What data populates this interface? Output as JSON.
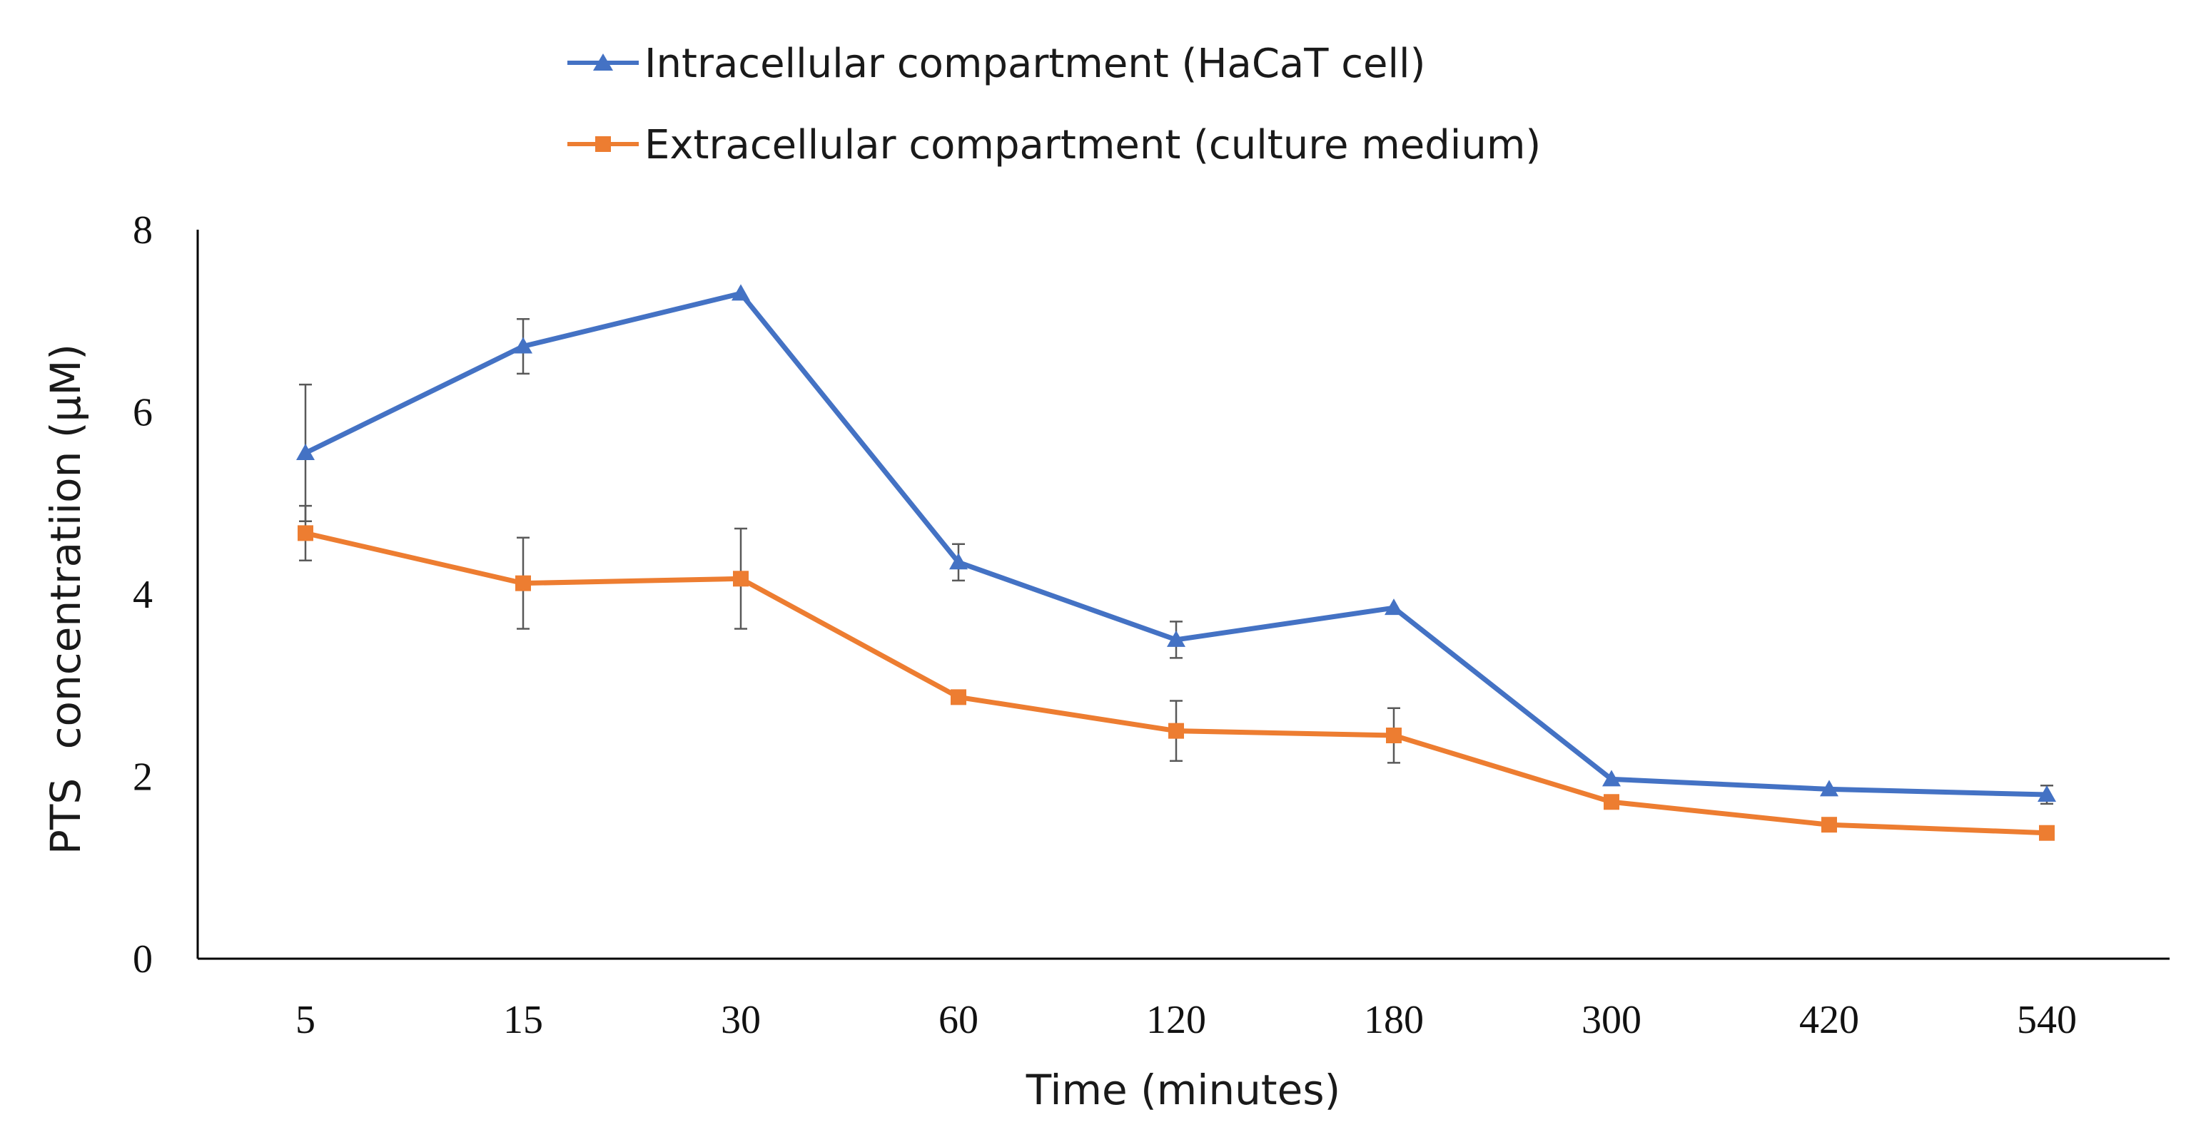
{
  "chart_data": {
    "type": "line",
    "title": "",
    "xlabel": "Time (minutes)",
    "ylabel_parts": [
      "PTS",
      "concentratiion (μM)"
    ],
    "categories": [
      "5",
      "15",
      "30",
      "60",
      "120",
      "180",
      "300",
      "420",
      "540"
    ],
    "ylim": [
      0,
      8
    ],
    "y_ticks": [
      0,
      2,
      4,
      6,
      8
    ],
    "y_tick_labels": [
      "0",
      "2",
      "4",
      "6",
      "8"
    ],
    "grid": false,
    "legend_position": "top-center",
    "series": [
      {
        "name": "Intracellular compartment (HaCaT cell)",
        "color": "#4472C4",
        "marker": "triangle",
        "values": [
          5.55,
          6.72,
          7.3,
          4.35,
          3.5,
          3.85,
          1.97,
          1.86,
          1.8
        ],
        "error": [
          0.75,
          0.3,
          0.0,
          0.2,
          0.2,
          0.0,
          0.0,
          0.0,
          0.1
        ]
      },
      {
        "name": "Extracellular compartment (culture medium)",
        "color": "#ED7D31",
        "marker": "square",
        "values": [
          4.67,
          4.12,
          4.17,
          2.87,
          2.5,
          2.45,
          1.72,
          1.47,
          1.38
        ],
        "error": [
          0.3,
          0.5,
          0.55,
          0.0,
          0.33,
          0.3,
          0.0,
          0.0,
          0.0
        ]
      }
    ]
  }
}
